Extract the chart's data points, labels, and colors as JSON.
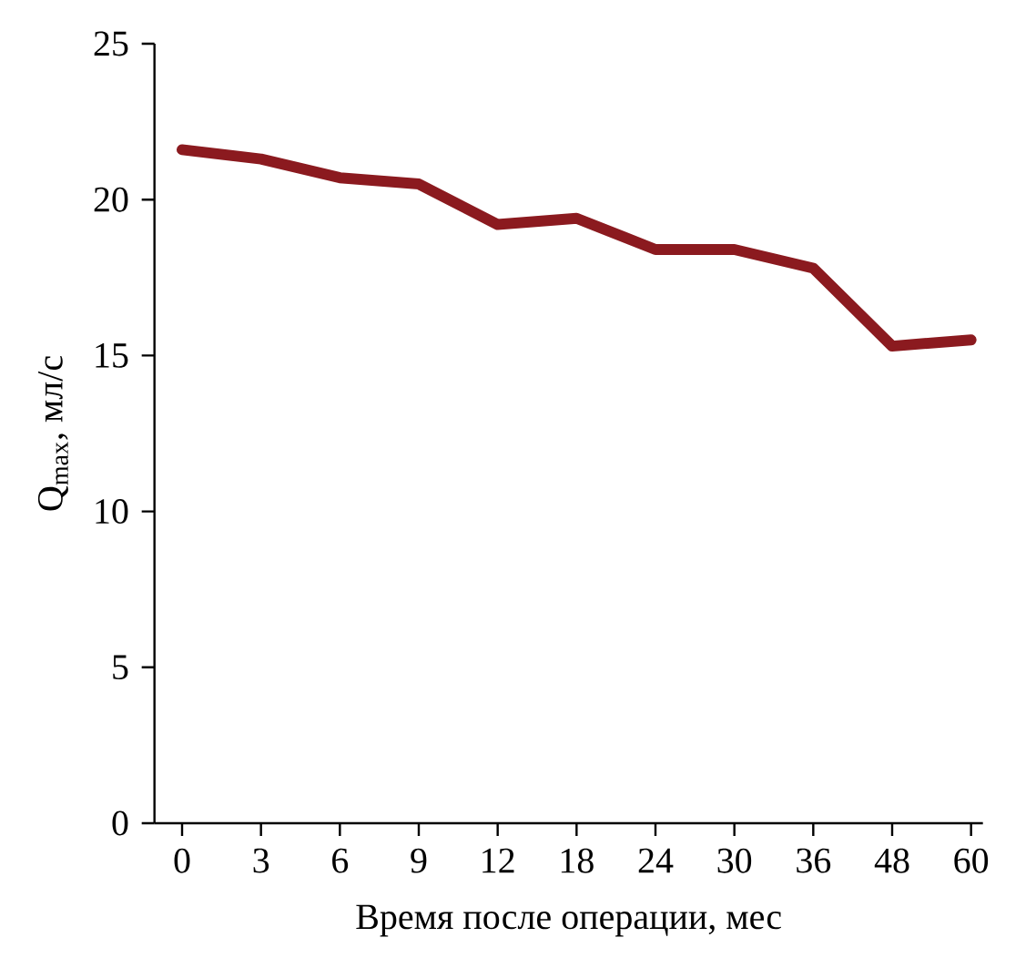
{
  "chart_data": {
    "type": "line",
    "xlabel": "Время после операции, мес",
    "ylabel": "Q$_{max}$, мл/с",
    "categories": [
      "0",
      "3",
      "6",
      "9",
      "12",
      "18",
      "24",
      "30",
      "36",
      "48",
      "60"
    ],
    "values": [
      21.6,
      21.3,
      20.7,
      20.5,
      19.2,
      19.4,
      18.4,
      18.4,
      17.8,
      15.3,
      15.5
    ],
    "color": "#8b1a1f",
    "line_style": "solid",
    "marker": "none",
    "ylim": [
      0,
      25
    ],
    "yticks": [
      0,
      5,
      10,
      15,
      20,
      25
    ]
  }
}
